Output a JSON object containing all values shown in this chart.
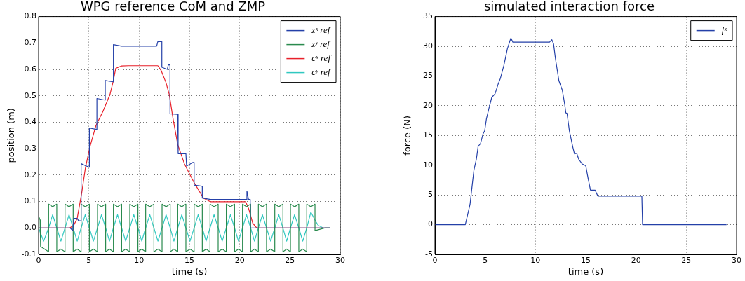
{
  "chart_data": [
    {
      "type": "line",
      "title": "WPG reference CoM and ZMP",
      "xlabel": "time (s)",
      "ylabel": "position (m)",
      "xlim": [
        0,
        30
      ],
      "xticks": [
        0,
        5,
        10,
        15,
        20,
        25,
        30
      ],
      "ylim": [
        -0.1,
        0.8
      ],
      "yticks": [
        -0.1,
        {
          "value": 0,
          "label": "0.0"
        },
        0.1,
        0.2,
        0.3,
        0.4,
        0.5,
        0.6,
        0.7,
        0.8
      ],
      "grid": true,
      "legend": "top right",
      "line_style": "solid",
      "series": [
        {
          "name": "zˣ ref",
          "color": "#2440a8",
          "x": [
            0,
            3.14,
            3.4,
            3.5,
            3.84,
            3.98,
            4.23,
            4.23,
            5.0,
            5.05,
            5.05,
            5.75,
            5.8,
            5.8,
            6.58,
            6.63,
            6.63,
            7.4,
            7.44,
            7.44,
            8.26,
            11.74,
            11.86,
            12.2,
            12.26,
            12.26,
            12.8,
            12.9,
            13.07,
            13.07,
            13.84,
            13.88,
            13.88,
            14.65,
            14.72,
            15.35,
            15.47,
            15.47,
            16.2,
            16.28,
            16.28,
            17.1,
            20.7,
            20.72,
            20.88,
            21.05,
            21.05,
            21.5,
            29.0
          ],
          "values": [
            0,
            0,
            -0.01,
            0.036,
            0.036,
            0.027,
            0.027,
            0.243,
            0.23,
            0.23,
            0.378,
            0.373,
            0.373,
            0.49,
            0.484,
            0.484,
            0.558,
            0.553,
            0.553,
            0.694,
            0.688,
            0.688,
            0.705,
            0.705,
            0.705,
            0.608,
            0.6,
            0.617,
            0.617,
            0.432,
            0.43,
            0.43,
            0.281,
            0.281,
            0.234,
            0.248,
            0.248,
            0.162,
            0.158,
            0.158,
            0.113,
            0.108,
            0.108,
            0.14,
            0.108,
            0.108,
            0,
            0,
            0
          ]
        },
        {
          "name": "zʸ ref",
          "color": "#2a8a4e",
          "x": [
            0,
            0.15,
            0.2,
            0.6,
            1.0,
            1.0,
            1.4,
            1.81,
            1.81,
            2.22,
            2.63,
            2.63,
            3.03,
            3.44,
            3.44,
            3.84,
            4.23,
            4.23,
            4.64,
            5.05,
            5.05,
            5.45,
            5.86,
            5.86,
            6.26,
            6.67,
            6.67,
            7.05,
            7.44,
            7.44,
            7.85,
            8.26,
            8.26,
            8.66,
            9.07,
            9.07,
            9.47,
            9.88,
            9.88,
            10.26,
            10.65,
            10.65,
            11.06,
            11.47,
            11.47,
            11.87,
            12.28,
            12.28,
            12.68,
            13.09,
            13.09,
            13.46,
            13.84,
            13.84,
            14.24,
            14.65,
            14.65,
            15.06,
            15.47,
            15.47,
            15.87,
            16.28,
            16.28,
            16.66,
            17.05,
            17.05,
            17.45,
            17.86,
            17.86,
            18.26,
            18.67,
            18.67,
            19.08,
            19.49,
            19.49,
            19.88,
            20.28,
            20.28,
            20.68,
            21.09,
            21.09,
            21.47,
            21.86,
            21.86,
            22.26,
            22.67,
            22.67,
            23.08,
            23.49,
            23.49,
            23.89,
            24.3,
            24.3,
            24.67,
            25.05,
            25.05,
            25.46,
            25.88,
            25.88,
            26.27,
            26.67,
            26.67,
            27.08,
            27.49,
            27.49,
            28.0,
            28.5,
            29.0
          ],
          "values": [
            0.045,
            0.03,
            -0.07,
            -0.08,
            -0.09,
            0.09,
            0.08,
            0.09,
            -0.09,
            -0.08,
            -0.09,
            0.09,
            0.08,
            0.09,
            -0.09,
            -0.08,
            -0.09,
            0.09,
            0.08,
            0.09,
            -0.09,
            -0.08,
            -0.09,
            0.09,
            0.08,
            0.09,
            -0.09,
            -0.08,
            -0.09,
            0.09,
            0.08,
            0.09,
            -0.09,
            -0.08,
            -0.09,
            0.09,
            0.08,
            0.09,
            -0.09,
            -0.08,
            -0.09,
            0.09,
            0.08,
            0.09,
            -0.09,
            -0.08,
            -0.09,
            0.09,
            0.08,
            0.09,
            -0.09,
            -0.08,
            -0.09,
            0.09,
            0.08,
            0.09,
            -0.09,
            -0.08,
            -0.09,
            0.09,
            0.08,
            0.09,
            -0.09,
            -0.08,
            -0.09,
            0.09,
            0.08,
            0.09,
            -0.09,
            -0.08,
            -0.09,
            0.09,
            0.08,
            0.09,
            -0.09,
            -0.08,
            -0.09,
            0.09,
            0.08,
            0.09,
            -0.09,
            -0.08,
            -0.09,
            0.09,
            0.08,
            0.09,
            -0.09,
            -0.08,
            -0.09,
            0.09,
            0.08,
            0.09,
            -0.09,
            -0.08,
            -0.09,
            0.09,
            0.08,
            0.09,
            -0.09,
            -0.08,
            -0.09,
            0.09,
            0.08,
            0.09,
            -0.01,
            -0.005,
            0,
            0
          ]
        },
        {
          "name": "cˣ ref",
          "color": "#e8202a",
          "x": [
            0,
            3.1,
            3.5,
            3.84,
            4.3,
            4.65,
            5.1,
            5.7,
            6.4,
            7.1,
            7.44,
            7.67,
            8.26,
            8.95,
            11.86,
            12.2,
            12.67,
            13.0,
            13.37,
            13.84,
            14.5,
            15.47,
            16.4,
            17.1,
            20.6,
            20.9,
            21.3,
            21.7,
            29.0
          ],
          "values": [
            0,
            0,
            0.01,
            0.036,
            0.135,
            0.225,
            0.306,
            0.387,
            0.441,
            0.505,
            0.558,
            0.604,
            0.613,
            0.614,
            0.614,
            0.595,
            0.55,
            0.505,
            0.414,
            0.315,
            0.243,
            0.171,
            0.113,
            0.099,
            0.099,
            0.072,
            0.018,
            0,
            0
          ]
        },
        {
          "name": "cʸ ref",
          "color": "#30c8c0",
          "x": [
            0,
            0.5,
            1.0,
            1.4,
            1.81,
            2.22,
            2.63,
            3.03,
            3.44,
            3.84,
            4.23,
            4.64,
            5.05,
            5.45,
            5.86,
            6.26,
            6.67,
            7.05,
            7.44,
            7.85,
            8.26,
            8.66,
            9.07,
            9.47,
            9.88,
            10.26,
            10.65,
            11.06,
            11.47,
            11.87,
            12.28,
            12.68,
            13.09,
            13.46,
            13.84,
            14.24,
            14.65,
            15.06,
            15.47,
            15.87,
            16.28,
            16.66,
            17.05,
            17.45,
            17.86,
            18.26,
            18.67,
            19.08,
            19.49,
            19.88,
            20.28,
            20.68,
            21.09,
            21.47,
            21.86,
            22.26,
            22.67,
            23.08,
            23.49,
            23.89,
            24.3,
            24.67,
            25.05,
            25.46,
            25.88,
            26.27,
            26.67,
            27.08,
            27.49,
            27.8,
            28.3,
            29.0
          ],
          "values": [
            0,
            -0.05,
            0,
            0.05,
            0,
            -0.05,
            0,
            0.05,
            0,
            -0.05,
            0,
            0.05,
            0,
            -0.05,
            0,
            0.05,
            0,
            -0.05,
            0,
            0.05,
            0,
            -0.05,
            0,
            0.05,
            0,
            -0.05,
            0,
            0.05,
            0,
            -0.05,
            0,
            0.05,
            0,
            -0.05,
            0,
            0.05,
            0,
            -0.05,
            0,
            0.05,
            0,
            -0.05,
            0,
            0.05,
            0,
            -0.05,
            0,
            0.05,
            0,
            -0.05,
            0,
            0.05,
            0,
            -0.05,
            0,
            0.05,
            0,
            -0.05,
            0,
            0.05,
            0,
            -0.05,
            0,
            0.05,
            0,
            -0.05,
            0,
            0.06,
            0.03,
            0.01,
            0,
            0
          ]
        }
      ]
    },
    {
      "type": "line",
      "title": "simulated interaction force",
      "xlabel": "time (s)",
      "ylabel": "force (N)",
      "xlim": [
        0,
        30
      ],
      "xticks": [
        0,
        5,
        10,
        15,
        20,
        25,
        30
      ],
      "ylim": [
        -5,
        35
      ],
      "yticks": [
        -5,
        0,
        5,
        10,
        15,
        20,
        25,
        30,
        35
      ],
      "grid": true,
      "legend": "top right",
      "line_style": "solid",
      "series": [
        {
          "name": "fˣ",
          "color": "#2440a8",
          "x": [
            0,
            3.02,
            3.49,
            3.65,
            3.88,
            4.12,
            4.3,
            4.53,
            4.77,
            4.95,
            5.12,
            5.35,
            5.65,
            5.98,
            6.28,
            6.51,
            6.86,
            7.21,
            7.44,
            7.56,
            7.74,
            11.4,
            11.63,
            11.8,
            11.98,
            12.33,
            12.67,
            12.91,
            13.02,
            13.14,
            13.37,
            13.72,
            13.88,
            14.1,
            14.3,
            14.65,
            15.0,
            15.23,
            15.47,
            15.93,
            16.2,
            20.58,
            20.65,
            29.0
          ],
          "values": [
            0,
            0,
            3.4,
            5.8,
            9.2,
            11.0,
            13.2,
            13.6,
            15.2,
            15.8,
            17.8,
            19.4,
            21.4,
            22.0,
            23.6,
            24.6,
            26.8,
            29.6,
            30.8,
            31.4,
            30.7,
            30.7,
            31.1,
            30.4,
            28.0,
            24.2,
            22.6,
            20.2,
            18.8,
            18.7,
            15.8,
            13.0,
            11.9,
            12.0,
            11.0,
            10.2,
            9.9,
            7.8,
            5.8,
            5.8,
            4.8,
            4.8,
            0,
            0
          ]
        }
      ]
    }
  ]
}
